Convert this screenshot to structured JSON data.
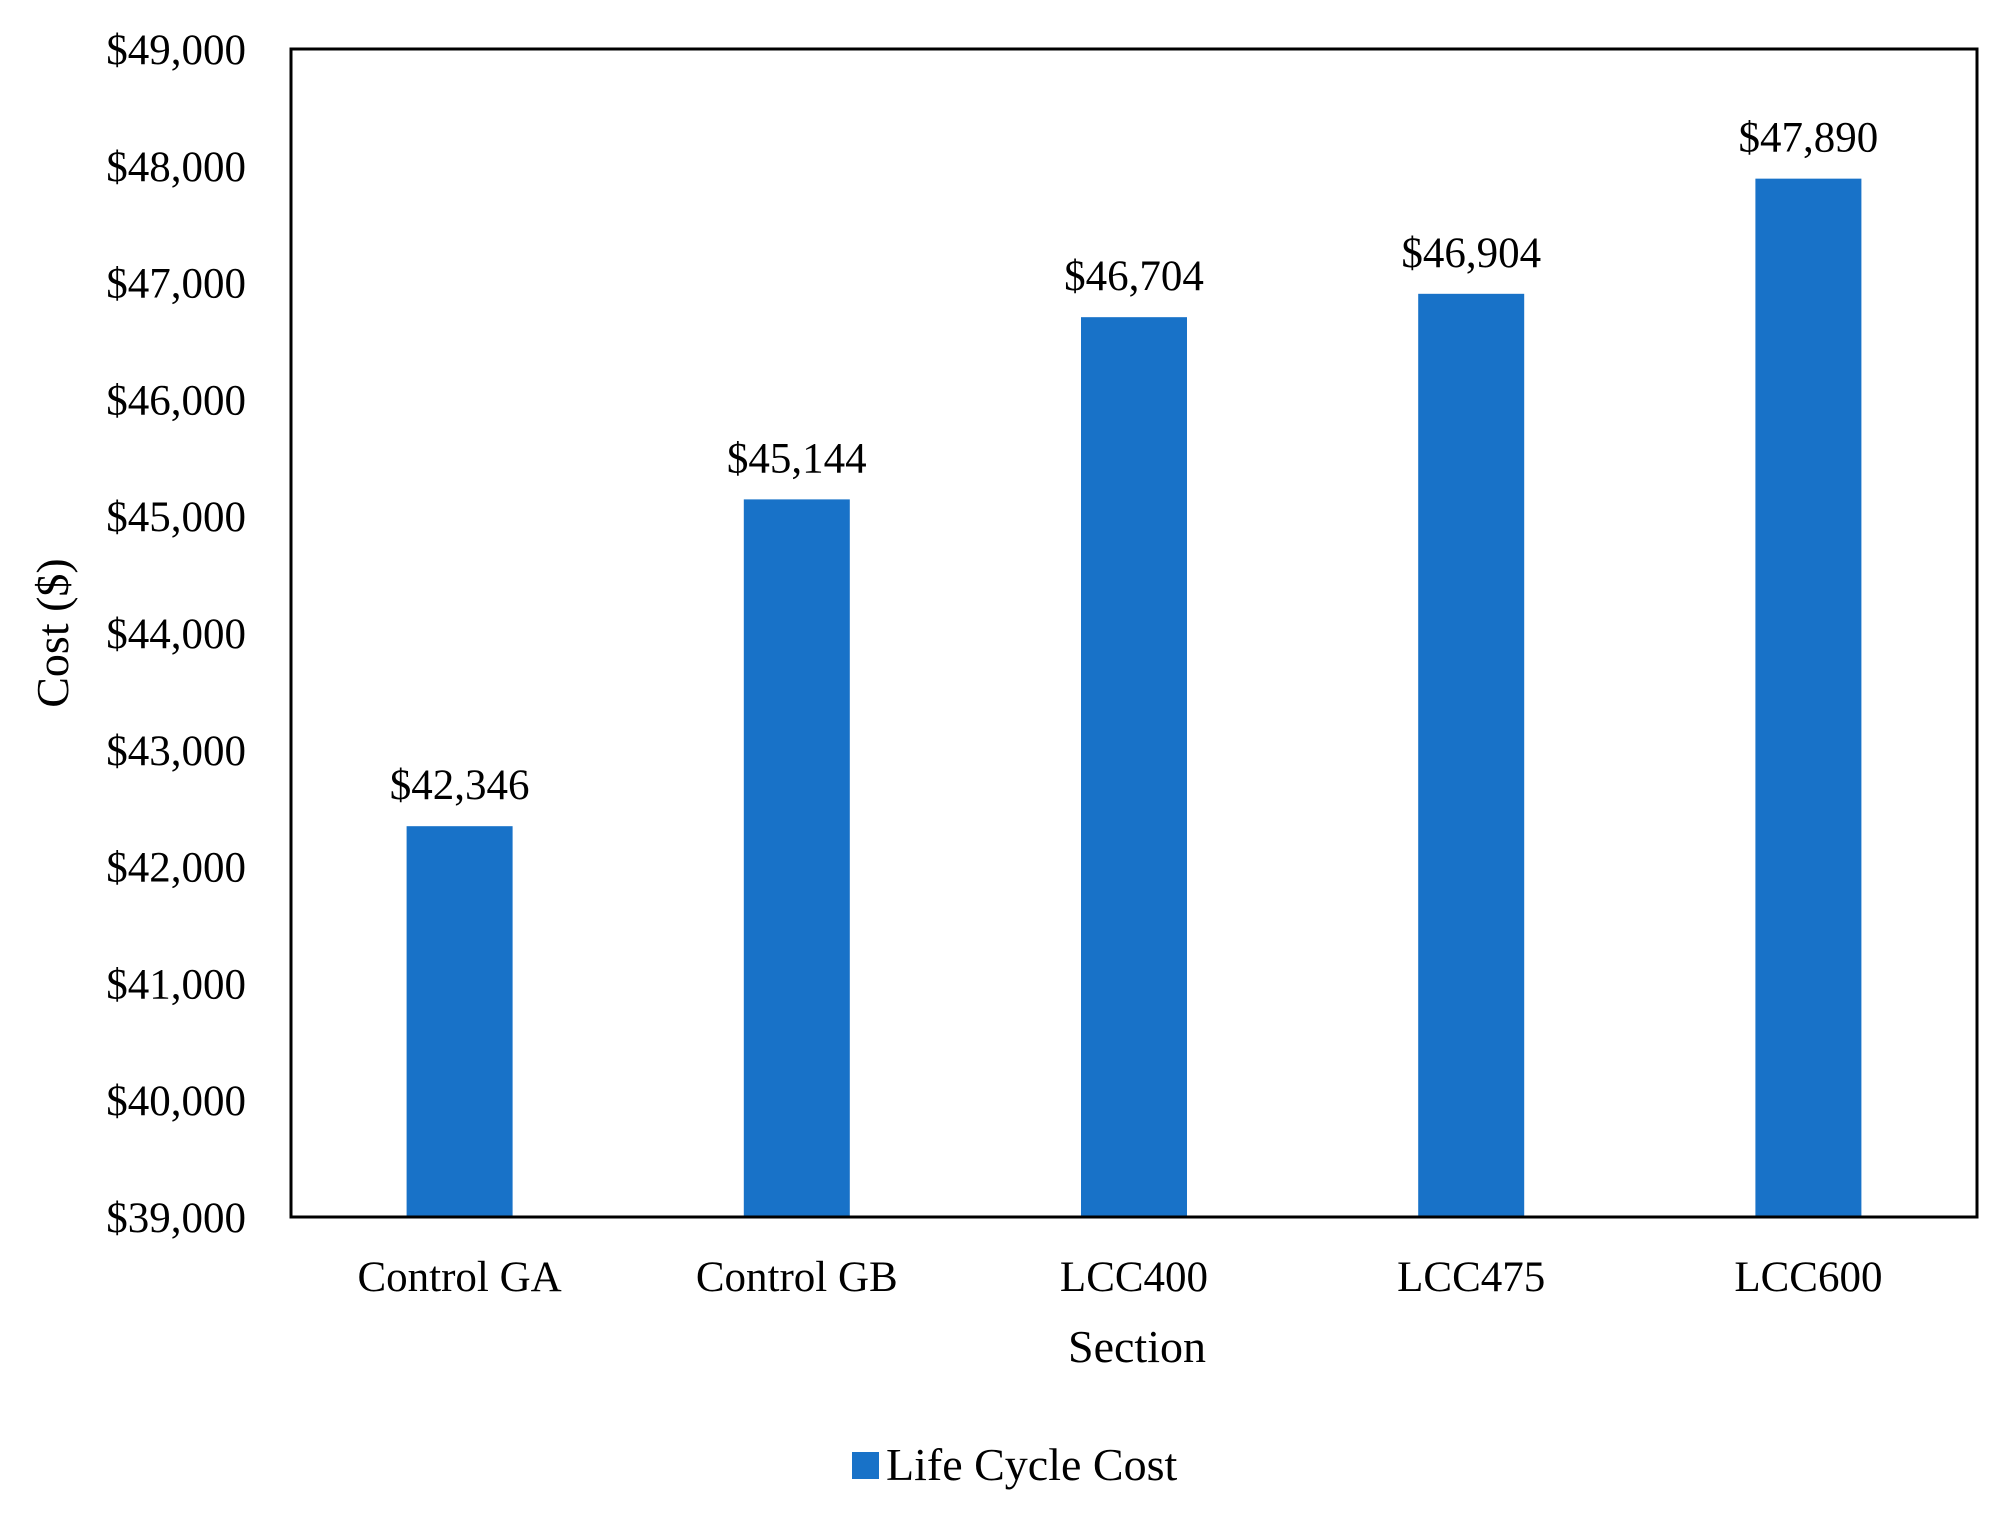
{
  "chart_data": {
    "type": "bar",
    "title": "",
    "xlabel": "Section",
    "ylabel": "Cost ($)",
    "ylim": [
      39000,
      49000
    ],
    "y_ticks": [
      39000,
      40000,
      41000,
      42000,
      43000,
      44000,
      45000,
      46000,
      47000,
      48000,
      49000
    ],
    "y_tick_labels": [
      "$39,000",
      "$40,000",
      "$41,000",
      "$42,000",
      "$43,000",
      "$44,000",
      "$45,000",
      "$46,000",
      "$47,000",
      "$48,000",
      "$49,000"
    ],
    "categories": [
      "Control GA",
      "Control GB",
      "LCC400",
      "LCC475",
      "LCC600"
    ],
    "series": [
      {
        "name": "Life Cycle Cost",
        "color": "#1872C8",
        "values": [
          42346,
          45144,
          46704,
          46904,
          47890
        ],
        "data_labels": [
          "$42,346",
          "$45,144",
          "$46,704",
          "$46,904",
          "$47,890"
        ]
      }
    ],
    "grid": false,
    "legend_position": "bottom"
  }
}
